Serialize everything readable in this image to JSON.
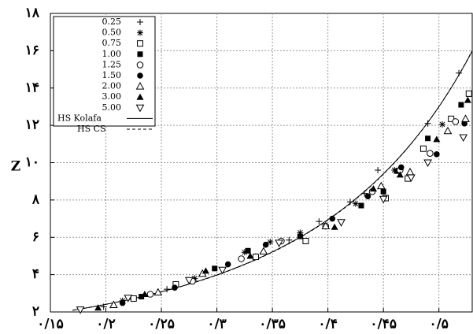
{
  "chart_data": {
    "type": "scatter",
    "ylabel": "Z",
    "xlabel": "",
    "grid": true,
    "legend_position": "top-left",
    "xlim": [
      0.15,
      0.53
    ],
    "ylim": [
      2,
      18
    ],
    "x_ticks": [
      {
        "value": 0.15,
        "label": "۰/۱۵"
      },
      {
        "value": 0.2,
        "label": "۰/۲"
      },
      {
        "value": 0.25,
        "label": "۰/۲۵"
      },
      {
        "value": 0.3,
        "label": "۰/۳"
      },
      {
        "value": 0.35,
        "label": "۰/۳۵"
      },
      {
        "value": 0.4,
        "label": "۰/۴"
      },
      {
        "value": 0.45,
        "label": "۰/۴۵"
      },
      {
        "value": 0.5,
        "label": "۰/۵"
      }
    ],
    "y_ticks": [
      {
        "value": 2,
        "label": "۲"
      },
      {
        "value": 4,
        "label": "۴"
      },
      {
        "value": 6,
        "label": "۶"
      },
      {
        "value": 8,
        "label": "۸"
      },
      {
        "value": 10,
        "label": "۱۰"
      },
      {
        "value": 12,
        "label": "۱۲"
      },
      {
        "value": 14,
        "label": "۱۴"
      },
      {
        "value": 16,
        "label": "۱۶"
      },
      {
        "value": 18,
        "label": "۱۸"
      }
    ],
    "series": [
      {
        "name": "0.25",
        "marker": "plus",
        "points": [
          [
            0.198,
            2.28
          ],
          [
            0.255,
            3.22
          ],
          [
            0.335,
            4.98
          ],
          [
            0.365,
            5.85
          ],
          [
            0.392,
            6.85
          ],
          [
            0.42,
            7.9
          ],
          [
            0.433,
            8.35
          ],
          [
            0.445,
            9.6
          ],
          [
            0.49,
            12.1
          ],
          [
            0.518,
            14.8
          ]
        ]
      },
      {
        "name": "0.50",
        "marker": "asterisk",
        "points": [
          [
            0.215,
            2.6
          ],
          [
            0.28,
            3.8
          ],
          [
            0.325,
            5.2
          ],
          [
            0.348,
            5.75
          ],
          [
            0.375,
            6.25
          ],
          [
            0.425,
            7.8
          ],
          [
            0.46,
            9.6
          ],
          [
            0.503,
            12.05
          ],
          [
            0.53,
            14.2
          ]
        ]
      },
      {
        "name": "0.75",
        "marker": "square-open",
        "points": [
          [
            0.225,
            2.72
          ],
          [
            0.263,
            3.48
          ],
          [
            0.335,
            4.95
          ],
          [
            0.38,
            5.8
          ],
          [
            0.452,
            8.1
          ],
          [
            0.472,
            9.15
          ],
          [
            0.486,
            10.75
          ],
          [
            0.511,
            12.35
          ],
          [
            0.527,
            13.7
          ]
        ]
      },
      {
        "name": "1.00",
        "marker": "square-filled",
        "points": [
          [
            0.232,
            2.82
          ],
          [
            0.298,
            4.33
          ],
          [
            0.328,
            5.28
          ],
          [
            0.375,
            6.05
          ],
          [
            0.43,
            7.7
          ],
          [
            0.45,
            8.45
          ],
          [
            0.462,
            9.55
          ],
          [
            0.49,
            11.3
          ],
          [
            0.52,
            13.1
          ]
        ]
      },
      {
        "name": "1.25",
        "marker": "circle-open",
        "points": [
          [
            0.24,
            2.95
          ],
          [
            0.278,
            3.65
          ],
          [
            0.322,
            4.85
          ],
          [
            0.358,
            5.8
          ],
          [
            0.398,
            6.6
          ],
          [
            0.44,
            8.45
          ],
          [
            0.465,
            9.6
          ],
          [
            0.492,
            10.5
          ],
          [
            0.515,
            12.2
          ]
        ]
      },
      {
        "name": "1.50",
        "marker": "circle-filled",
        "points": [
          [
            0.215,
            2.48
          ],
          [
            0.262,
            3.3
          ],
          [
            0.31,
            4.55
          ],
          [
            0.344,
            5.6
          ],
          [
            0.404,
            7.0
          ],
          [
            0.436,
            8.2
          ],
          [
            0.466,
            9.75
          ],
          [
            0.498,
            10.45
          ],
          [
            0.523,
            12.1
          ]
        ]
      },
      {
        "name": "2.00",
        "marker": "triangle-up-open",
        "points": [
          [
            0.207,
            2.38
          ],
          [
            0.247,
            3.05
          ],
          [
            0.287,
            4.05
          ],
          [
            0.342,
            5.25
          ],
          [
            0.398,
            6.6
          ],
          [
            0.448,
            8.75
          ],
          [
            0.474,
            9.5
          ],
          [
            0.508,
            11.7
          ],
          [
            0.524,
            12.35
          ]
        ]
      },
      {
        "name": "3.00",
        "marker": "triangle-up-filled",
        "points": [
          [
            0.193,
            2.22
          ],
          [
            0.235,
            2.95
          ],
          [
            0.29,
            4.2
          ],
          [
            0.33,
            5.0
          ],
          [
            0.406,
            6.55
          ],
          [
            0.441,
            8.6
          ],
          [
            0.465,
            9.35
          ],
          [
            0.498,
            11.25
          ],
          [
            0.526,
            13.35
          ]
        ]
      },
      {
        "name": "5.00",
        "marker": "triangle-down-open",
        "points": [
          [
            0.177,
            2.12
          ],
          [
            0.22,
            2.75
          ],
          [
            0.275,
            3.7
          ],
          [
            0.305,
            4.25
          ],
          [
            0.356,
            5.7
          ],
          [
            0.412,
            6.8
          ],
          [
            0.45,
            8.05
          ],
          [
            0.475,
            9.2
          ],
          [
            0.49,
            10.0
          ],
          [
            0.522,
            11.35
          ],
          [
            0.53,
            12.05
          ]
        ]
      }
    ],
    "lines": [
      {
        "name": "HS Kolafa",
        "style": "solid"
      },
      {
        "name": "HS CS",
        "style": "dashed"
      }
    ]
  }
}
